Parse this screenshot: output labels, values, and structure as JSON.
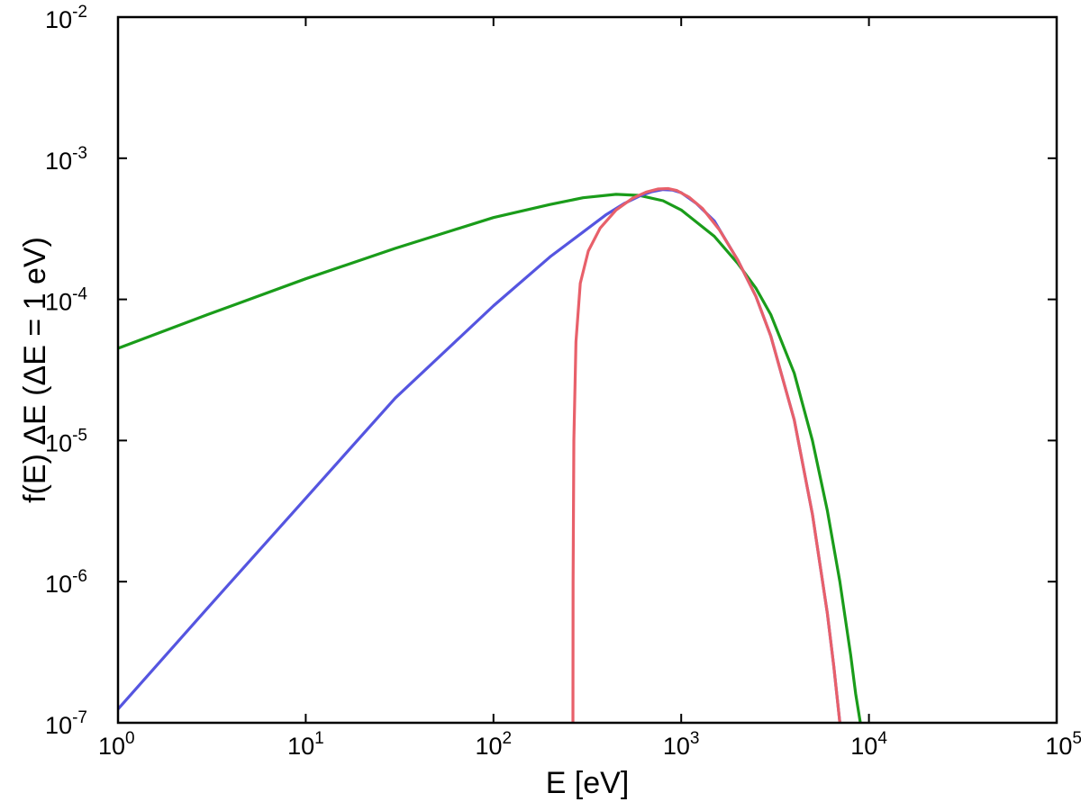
{
  "chart_data": {
    "type": "line",
    "title": "",
    "xlabel": "E [eV]",
    "ylabel": "f(E) ΔE   (ΔE = 1 eV)",
    "xscale": "log",
    "yscale": "log",
    "xlim": [
      1,
      100000
    ],
    "ylim": [
      1e-07,
      0.01
    ],
    "grid": false,
    "legend": "none",
    "x_ticks": [
      {
        "base": "10",
        "exp": "0",
        "value": 1
      },
      {
        "base": "10",
        "exp": "1",
        "value": 10
      },
      {
        "base": "10",
        "exp": "2",
        "value": 100
      },
      {
        "base": "10",
        "exp": "3",
        "value": 1000
      },
      {
        "base": "10",
        "exp": "4",
        "value": 10000
      },
      {
        "base": "10",
        "exp": "5",
        "value": 100000
      }
    ],
    "y_ticks": [
      {
        "base": "10",
        "exp": "-7",
        "value": 1e-07
      },
      {
        "base": "10",
        "exp": "-6",
        "value": 1e-06
      },
      {
        "base": "10",
        "exp": "-5",
        "value": 1e-05
      },
      {
        "base": "10",
        "exp": "-4",
        "value": 0.0001
      },
      {
        "base": "10",
        "exp": "-3",
        "value": 0.001
      },
      {
        "base": "10",
        "exp": "-2",
        "value": 0.01
      }
    ],
    "series": [
      {
        "color": "#1a9c1a",
        "points": [
          [
            1,
            4.5e-05
          ],
          [
            3,
            7.8e-05
          ],
          [
            10,
            0.00014
          ],
          [
            30,
            0.00023
          ],
          [
            100,
            0.00038
          ],
          [
            200,
            0.00047
          ],
          [
            300,
            0.000525
          ],
          [
            450,
            0.000555
          ],
          [
            600,
            0.000545
          ],
          [
            800,
            0.0005
          ],
          [
            1000,
            0.00043
          ],
          [
            1500,
            0.00028
          ],
          [
            2000,
            0.00018
          ],
          [
            2500,
            0.00012
          ],
          [
            3000,
            7.8e-05
          ],
          [
            4000,
            3e-05
          ],
          [
            5000,
            1e-05
          ],
          [
            6000,
            3.2e-06
          ],
          [
            7000,
            1e-06
          ],
          [
            8000,
            3e-07
          ],
          [
            8500,
            1.6e-07
          ],
          [
            9000,
            1e-07
          ]
        ]
      },
      {
        "color": "#5555e0",
        "points": [
          [
            1,
            1.25e-07
          ],
          [
            3,
            6.5e-07
          ],
          [
            10,
            3.9e-06
          ],
          [
            30,
            2e-05
          ],
          [
            100,
            9e-05
          ],
          [
            200,
            0.0002
          ],
          [
            300,
            0.0003
          ],
          [
            400,
            0.0004
          ],
          [
            500,
            0.00048
          ],
          [
            600,
            0.00054
          ],
          [
            700,
            0.00058
          ],
          [
            800,
            0.0006
          ],
          [
            900,
            0.000595
          ],
          [
            1000,
            0.00057
          ],
          [
            1200,
            0.00048
          ],
          [
            1500,
            0.00036
          ],
          [
            2000,
            0.00019
          ],
          [
            2500,
            0.000105
          ],
          [
            3000,
            5.5e-05
          ],
          [
            4000,
            1.4e-05
          ],
          [
            5000,
            3e-06
          ],
          [
            6000,
            6e-07
          ],
          [
            6500,
            2.5e-07
          ],
          [
            7000,
            1e-07
          ]
        ]
      },
      {
        "color": "#e8606a",
        "points": [
          [
            265,
            1e-07
          ],
          [
            265.5,
            1e-06
          ],
          [
            268,
            1e-05
          ],
          [
            275,
            5e-05
          ],
          [
            290,
            0.00013
          ],
          [
            320,
            0.00022
          ],
          [
            370,
            0.00032
          ],
          [
            450,
            0.00043
          ],
          [
            550,
            0.00052
          ],
          [
            650,
            0.000575
          ],
          [
            750,
            0.000605
          ],
          [
            850,
            0.00061
          ],
          [
            950,
            0.00059
          ],
          [
            1100,
            0.00053
          ],
          [
            1300,
            0.00044
          ],
          [
            1600,
            0.00031
          ],
          [
            2000,
            0.00019
          ],
          [
            2500,
            0.000105
          ],
          [
            3000,
            5.5e-05
          ],
          [
            4000,
            1.4e-05
          ],
          [
            5000,
            3e-06
          ],
          [
            6000,
            6e-07
          ],
          [
            6500,
            2.5e-07
          ],
          [
            7000,
            1e-07
          ]
        ]
      }
    ]
  }
}
